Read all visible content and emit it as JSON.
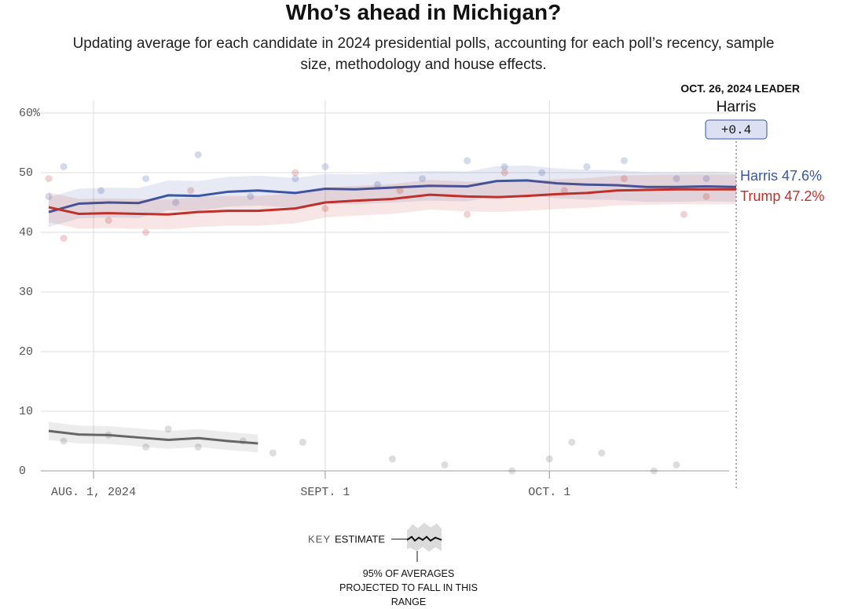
{
  "chart_data": {
    "type": "line",
    "title": "Who’s ahead in Michigan?",
    "subtitle": "Updating average for each candidate in 2024 presidential polls, accounting for each poll’s recency, sample size, methodology and house effects.",
    "x": [
      "2024-07-26",
      "2024-07-30",
      "2024-08-03",
      "2024-08-07",
      "2024-08-11",
      "2024-08-15",
      "2024-08-19",
      "2024-08-23",
      "2024-08-28",
      "2024-09-01",
      "2024-09-05",
      "2024-09-10",
      "2024-09-15",
      "2024-09-20",
      "2024-09-24",
      "2024-09-28",
      "2024-10-02",
      "2024-10-06",
      "2024-10-10",
      "2024-10-14",
      "2024-10-18",
      "2024-10-22",
      "2024-10-26"
    ],
    "xlim": [
      "2024-07-26",
      "2024-10-26"
    ],
    "xticks": [
      {
        "value": "2024-08-01",
        "label": "AUG. 1, 2024"
      },
      {
        "value": "2024-09-01",
        "label": "SEPT. 1"
      },
      {
        "value": "2024-10-01",
        "label": "OCT. 1"
      }
    ],
    "ylim": [
      0,
      60
    ],
    "yticks": [
      0,
      10,
      20,
      30,
      40,
      50,
      {
        "value": 60,
        "label": "60%"
      }
    ],
    "grid": true,
    "series": [
      {
        "name": "Harris",
        "color": "#3a56a4",
        "interval": 2.5,
        "values": [
          43.4,
          44.8,
          45.0,
          44.9,
          46.2,
          46.1,
          46.8,
          47.0,
          46.6,
          47.3,
          47.2,
          47.5,
          47.8,
          47.7,
          48.6,
          48.7,
          48.2,
          48.0,
          47.9,
          47.6,
          47.6,
          47.7,
          47.6
        ],
        "value_labels": [
          null,
          null,
          null,
          null,
          null,
          null,
          null,
          null,
          null,
          null,
          null,
          null,
          null,
          null,
          null,
          null,
          null,
          null,
          null,
          null,
          null,
          null,
          "47.6%"
        ],
        "poll_x": [
          "2024-07-26",
          "2024-07-28",
          "2024-08-02",
          "2024-08-08",
          "2024-08-12",
          "2024-08-15",
          "2024-08-22",
          "2024-08-28",
          "2024-09-01",
          "2024-09-08",
          "2024-09-14",
          "2024-09-20",
          "2024-09-25",
          "2024-09-30",
          "2024-10-06",
          "2024-10-11",
          "2024-10-18",
          "2024-10-22"
        ],
        "poll_values": [
          46,
          51,
          47,
          49,
          45,
          53,
          46,
          49,
          51,
          48,
          49,
          52,
          51,
          50,
          51,
          52,
          49,
          49
        ]
      },
      {
        "name": "Trump",
        "color": "#c0302b",
        "interval": 2.5,
        "values": [
          44.2,
          43.1,
          43.2,
          43.1,
          43.0,
          43.4,
          43.6,
          43.6,
          44.0,
          45.0,
          45.3,
          45.6,
          46.3,
          46.0,
          45.9,
          46.1,
          46.4,
          46.6,
          47.0,
          47.1,
          47.2,
          47.2,
          47.2
        ],
        "value_labels": [
          null,
          null,
          null,
          null,
          null,
          null,
          null,
          null,
          null,
          null,
          null,
          null,
          null,
          null,
          null,
          null,
          null,
          null,
          null,
          null,
          null,
          null,
          "47.2%"
        ],
        "poll_x": [
          "2024-07-26",
          "2024-07-28",
          "2024-08-03",
          "2024-08-08",
          "2024-08-14",
          "2024-08-28",
          "2024-09-01",
          "2024-09-11",
          "2024-09-20",
          "2024-09-25",
          "2024-10-03",
          "2024-10-11",
          "2024-10-19",
          "2024-10-22"
        ],
        "poll_values": [
          49,
          39,
          42,
          40,
          47,
          50,
          44,
          47,
          43,
          50,
          47,
          49,
          43,
          46
        ]
      },
      {
        "color": "#666666",
        "interval": 1.5,
        "values": [
          6.7,
          6.1,
          6.0,
          5.6,
          5.2,
          5.5,
          5.0,
          4.6,
          null,
          null,
          null,
          null,
          null,
          null,
          null,
          null,
          null,
          null,
          null,
          null,
          null,
          null,
          null
        ],
        "poll_x": [
          "2024-07-28",
          "2024-08-03",
          "2024-08-08",
          "2024-08-11",
          "2024-08-15",
          "2024-08-21",
          "2024-08-25",
          "2024-08-29",
          "2024-09-10",
          "2024-09-17",
          "2024-09-26",
          "2024-10-01",
          "2024-10-04",
          "2024-10-08",
          "2024-10-15",
          "2024-10-18"
        ],
        "poll_values": [
          5,
          6,
          4,
          7,
          4,
          5,
          3,
          4.8,
          2,
          1,
          0,
          2,
          4.8,
          3,
          0,
          1
        ]
      }
    ],
    "leader": {
      "heading": "OCT. 26, 2024 LEADER",
      "name": "Harris",
      "margin": 0.4,
      "margin_label": "+0.4"
    },
    "key": {
      "title": "KEY",
      "estimate": "ESTIMATE",
      "range_note": "95% OF AVERAGES PROJECTED TO FALL IN THIS RANGE"
    }
  }
}
